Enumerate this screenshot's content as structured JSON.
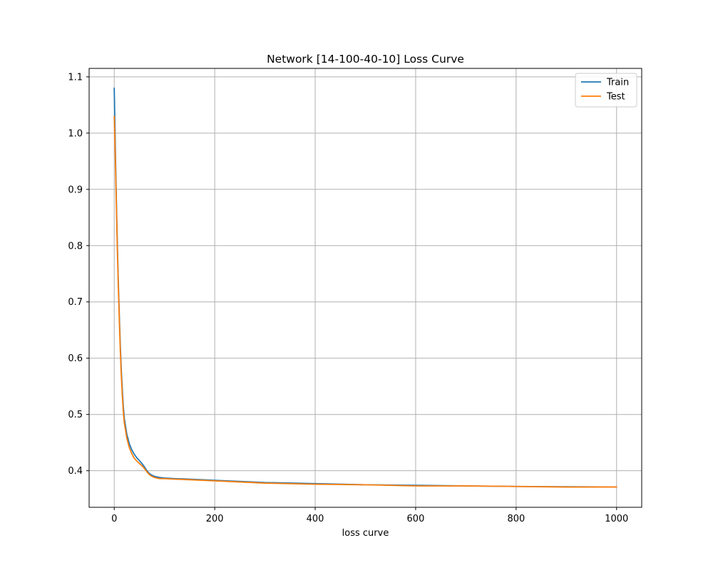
{
  "chart_data": {
    "type": "line",
    "title": "Network [14-100-40-10] Loss Curve",
    "xlabel": "loss curve",
    "ylabel": "",
    "xlim": [
      -50,
      1050
    ],
    "ylim": [
      0.335,
      1.115
    ],
    "xticks": [
      0,
      200,
      400,
      600,
      800,
      1000
    ],
    "xtick_labels": [
      "0",
      "200",
      "400",
      "600",
      "800",
      "1000"
    ],
    "yticks": [
      0.4,
      0.5,
      0.6,
      0.7,
      0.8,
      0.9,
      1.0,
      1.1
    ],
    "ytick_labels": [
      "0.4",
      "0.5",
      "0.6",
      "0.7",
      "0.8",
      "0.9",
      "1.0",
      "1.1"
    ],
    "grid": true,
    "legend_position": "top-right",
    "series": [
      {
        "name": "Train",
        "color": "#1f77b4",
        "x": [
          0,
          2,
          4,
          6,
          8,
          10,
          12,
          14,
          16,
          18,
          20,
          25,
          30,
          35,
          40,
          45,
          50,
          55,
          60,
          65,
          70,
          75,
          80,
          90,
          100,
          120,
          150,
          200,
          250,
          300,
          400,
          500,
          600,
          700,
          800,
          900,
          1000
        ],
        "y": [
          1.08,
          0.98,
          0.89,
          0.81,
          0.74,
          0.68,
          0.625,
          0.58,
          0.545,
          0.515,
          0.493,
          0.465,
          0.448,
          0.437,
          0.429,
          0.423,
          0.418,
          0.413,
          0.407,
          0.4,
          0.395,
          0.392,
          0.39,
          0.388,
          0.387,
          0.386,
          0.385,
          0.383,
          0.381,
          0.379,
          0.377,
          0.375,
          0.374,
          0.373,
          0.372,
          0.3715,
          0.371
        ]
      },
      {
        "name": "Test",
        "color": "#ff7f0e",
        "x": [
          0,
          2,
          4,
          6,
          8,
          10,
          12,
          14,
          16,
          18,
          20,
          25,
          30,
          35,
          40,
          45,
          50,
          55,
          60,
          65,
          70,
          75,
          80,
          90,
          100,
          120,
          150,
          200,
          250,
          300,
          400,
          500,
          600,
          700,
          800,
          900,
          1000
        ],
        "y": [
          1.03,
          0.96,
          0.88,
          0.8,
          0.73,
          0.67,
          0.615,
          0.57,
          0.535,
          0.505,
          0.485,
          0.458,
          0.441,
          0.43,
          0.422,
          0.417,
          0.413,
          0.409,
          0.404,
          0.398,
          0.393,
          0.39,
          0.388,
          0.386,
          0.386,
          0.385,
          0.384,
          0.382,
          0.38,
          0.378,
          0.376,
          0.375,
          0.373,
          0.373,
          0.372,
          0.371,
          0.371
        ]
      }
    ]
  }
}
